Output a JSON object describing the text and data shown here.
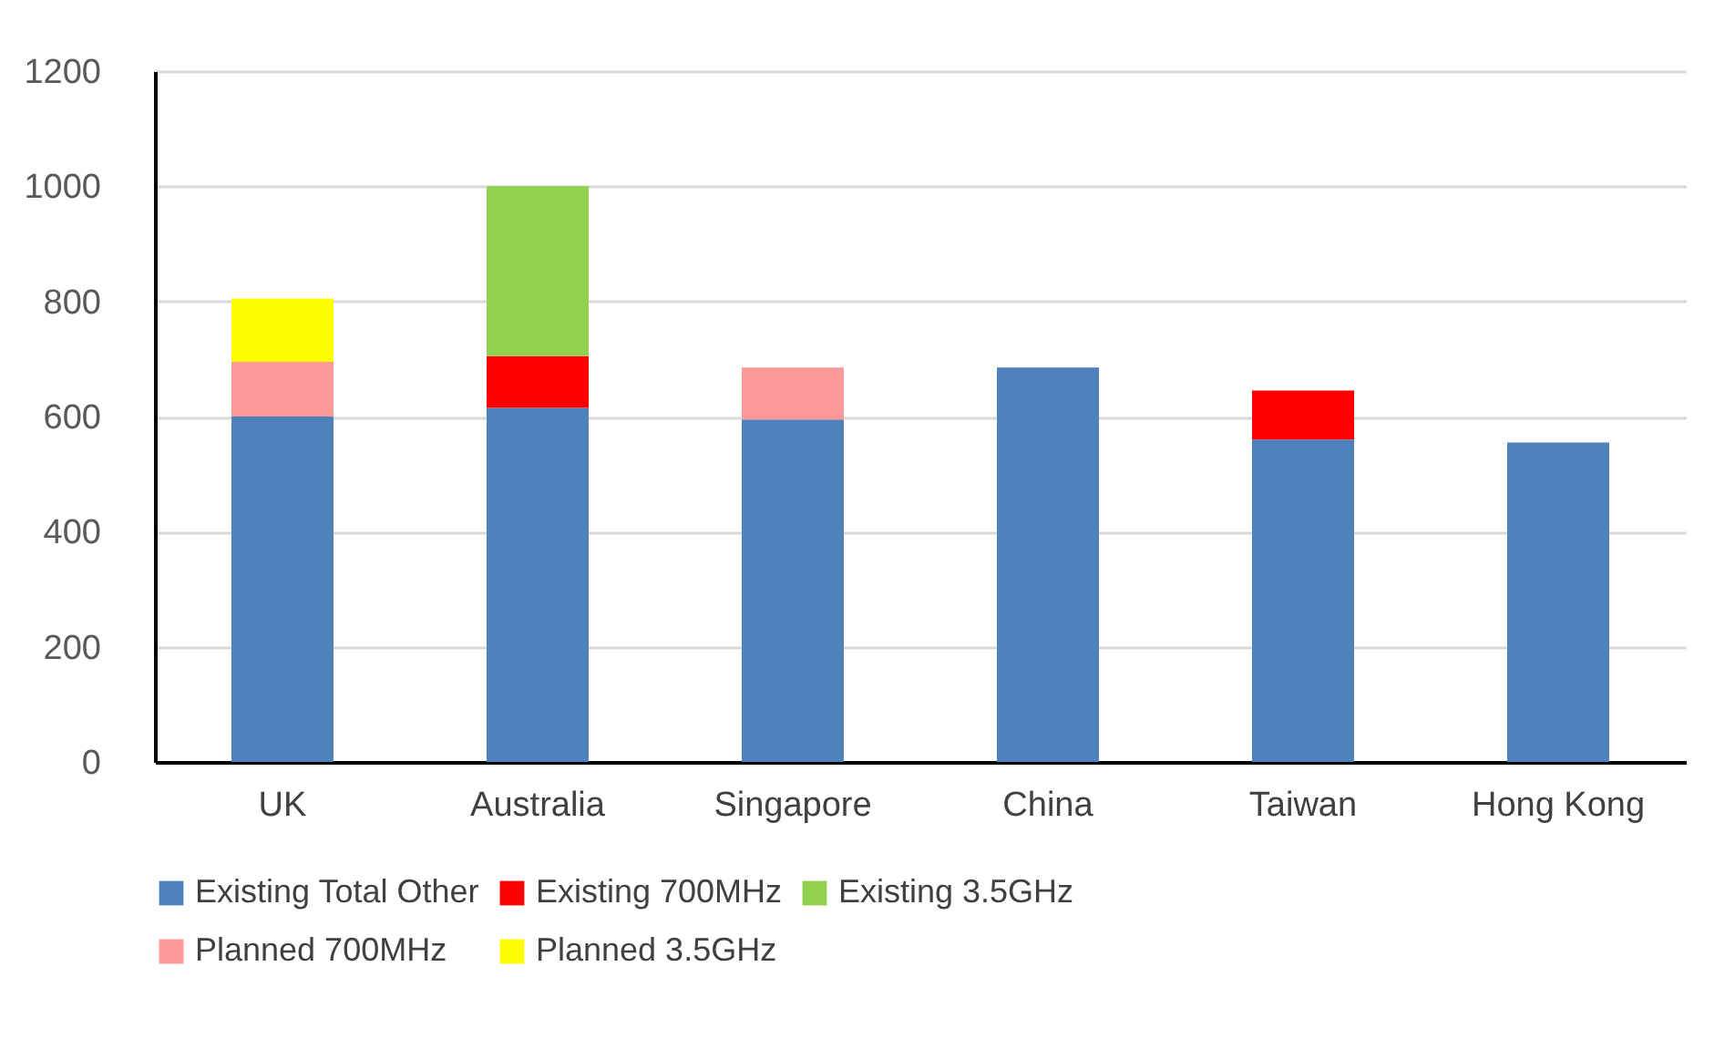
{
  "chart_data": {
    "type": "bar",
    "stacked": true,
    "categories": [
      "UK",
      "Australia",
      "Singapore",
      "China",
      "Taiwan",
      "Hong Kong"
    ],
    "series": [
      {
        "name": "Existing Total Other",
        "color": "#4f81bd",
        "values": [
          600,
          615,
          595,
          685,
          560,
          555
        ]
      },
      {
        "name": "Existing 700MHz",
        "color": "#ff0000",
        "values": [
          0,
          90,
          0,
          0,
          85,
          0
        ]
      },
      {
        "name": "Existing 3.5GHz",
        "color": "#92d050",
        "values": [
          0,
          295,
          0,
          0,
          0,
          0
        ]
      },
      {
        "name": "Planned 700MHz",
        "color": "#ff9999",
        "values": [
          95,
          0,
          90,
          0,
          0,
          0
        ]
      },
      {
        "name": "Planned 3.5GHz",
        "color": "#ffff00",
        "values": [
          110,
          0,
          0,
          0,
          0,
          0
        ]
      }
    ],
    "ylim": [
      0,
      1200
    ],
    "yticks": [
      0,
      200,
      400,
      600,
      800,
      1000,
      1200
    ],
    "grid": "y",
    "legend": "bottom"
  }
}
